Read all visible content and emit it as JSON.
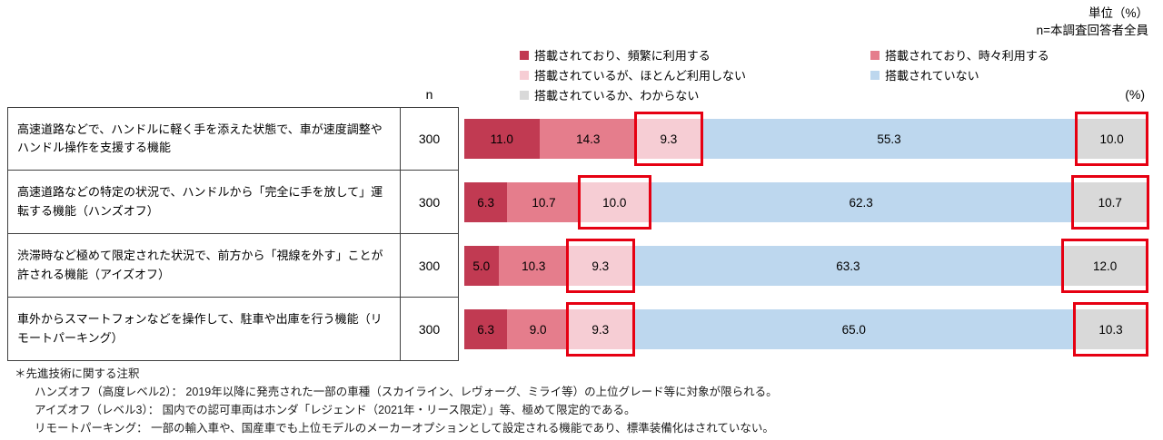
{
  "meta": {
    "unit_note": "単位（%）",
    "sample_note": "n=本調査回答者全員",
    "n_header": "n",
    "percent_header": "(%)"
  },
  "legend": {
    "items": [
      {
        "label": "搭載されており、頻繁に利用する",
        "color": "#c13a52"
      },
      {
        "label": "搭載されており、時々利用する",
        "color": "#e57d8c"
      },
      {
        "label": "搭載されているが、ほとんど利用しない",
        "color": "#f6cdd4"
      },
      {
        "label": "搭載されていない",
        "color": "#bdd7ee"
      },
      {
        "label": "搭載されているか、わからない",
        "color": "#d9d9d9"
      }
    ]
  },
  "chart_data": {
    "type": "bar",
    "variant": "horizontal-stacked",
    "unit": "%",
    "xlim": [
      0,
      100
    ],
    "series": [
      "搭載されており、頻繁に利用する",
      "搭載されており、時々利用する",
      "搭載されているが、ほとんど利用しない",
      "搭載されていない",
      "搭載されているか、わからない"
    ],
    "rows": [
      {
        "label": "高速道路などで、ハンドルに軽く手を添えた状態で、車が速度調整やハンドル操作を支援する機能",
        "n": 300,
        "values": [
          11.0,
          14.3,
          9.3,
          55.3,
          10.0
        ]
      },
      {
        "label": "高速道路などの特定の状況で、ハンドルから「完全に手を放して」運転する機能（ハンズオフ）",
        "n": 300,
        "values": [
          6.3,
          10.7,
          10.0,
          62.3,
          10.7
        ]
      },
      {
        "label": "渋滞時など極めて限定された状況で、前方から「視線を外す」ことが許される機能（アイズオフ）",
        "n": 300,
        "values": [
          5.0,
          10.3,
          9.3,
          63.3,
          12.0
        ]
      },
      {
        "label": "車外からスマートフォンなどを操作して、駐車や出庫を行う機能（リモートパーキング）",
        "n": 300,
        "values": [
          6.3,
          9.0,
          9.3,
          65.0,
          10.3
        ]
      }
    ],
    "highlighted_series_indexes": [
      2,
      4
    ],
    "highlight_color": "#e60012"
  },
  "footnotes": {
    "title": "＊先進技術に関する注釈",
    "items": [
      "ハンズオフ（高度レベル2）： 2019年以降に発売された一部の車種（スカイライン、レヴォーグ、ミライ等）の上位グレード等に対象が限られる。",
      "アイズオフ（レベル3）： 国内での認可車両はホンダ「レジェンド（2021年・リース限定）」等、極めて限定的である。",
      "リモートパーキング： 一部の輸入車や、国産車でも上位モデルのメーカーオプションとして設定される機能であり、標準装備化はされていない。"
    ]
  }
}
